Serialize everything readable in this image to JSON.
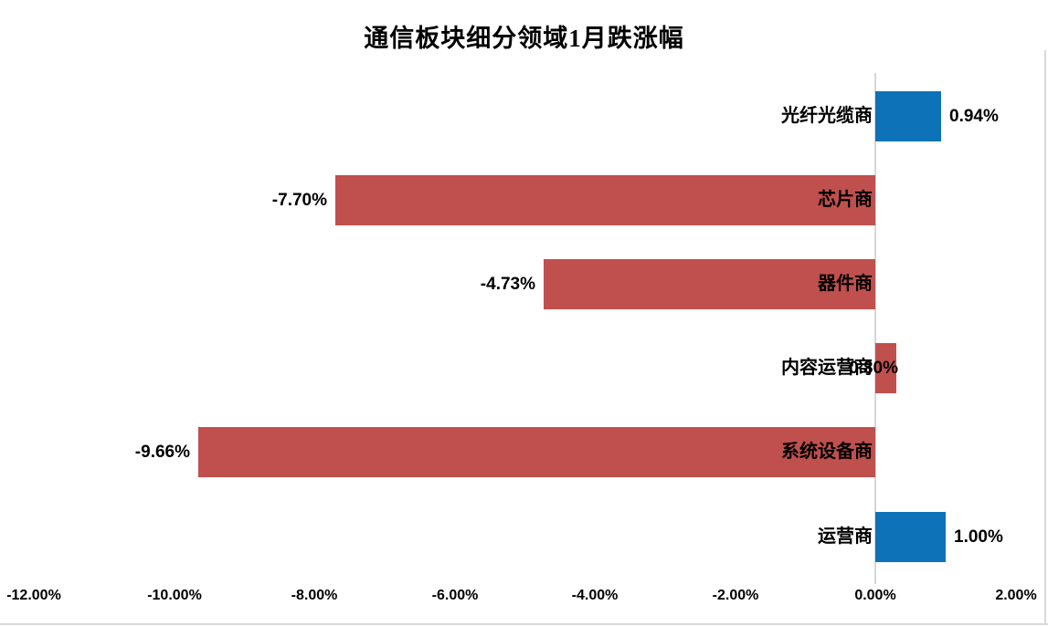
{
  "title": "通信板块细分领域1月跌涨幅",
  "colors": {
    "positive_bar": "#0e72b8",
    "negative_bar": "#c0504d",
    "axis_line": "#d6d6d6",
    "border_line": "#d9d9d9",
    "text": "#000000"
  },
  "chart_data": {
    "type": "bar",
    "orientation": "horizontal",
    "title": "通信板块细分领域1月跌涨幅",
    "categories": [
      "光纤光缆商",
      "芯片商",
      "器件商",
      "内容运营商",
      "系统设备商",
      "运营商"
    ],
    "values": [
      0.94,
      -7.7,
      -4.73,
      0.3,
      -9.66,
      1.0
    ],
    "value_labels": [
      "0.94%",
      "-7.70%",
      "-4.73%",
      "0.30%",
      "-9.66%",
      "1.00%"
    ],
    "bar_colors": [
      "#0e72b8",
      "#c0504d",
      "#c0504d",
      "#c0504d",
      "#c0504d",
      "#0e72b8"
    ],
    "unit": "%",
    "xlim": [
      -12,
      2
    ],
    "x_ticks": [
      -12,
      -10,
      -8,
      -6,
      -4,
      -2,
      0,
      2
    ],
    "x_tick_labels": [
      "-12.00%",
      "-10.00%",
      "-8.00%",
      "-6.00%",
      "-4.00%",
      "-2.00%",
      "0.00%",
      "2.00%"
    ],
    "grid": false,
    "legend": "none",
    "category_labels_position": "right-aligned-at-zero-axis",
    "value_labels_position": "outside-end"
  }
}
